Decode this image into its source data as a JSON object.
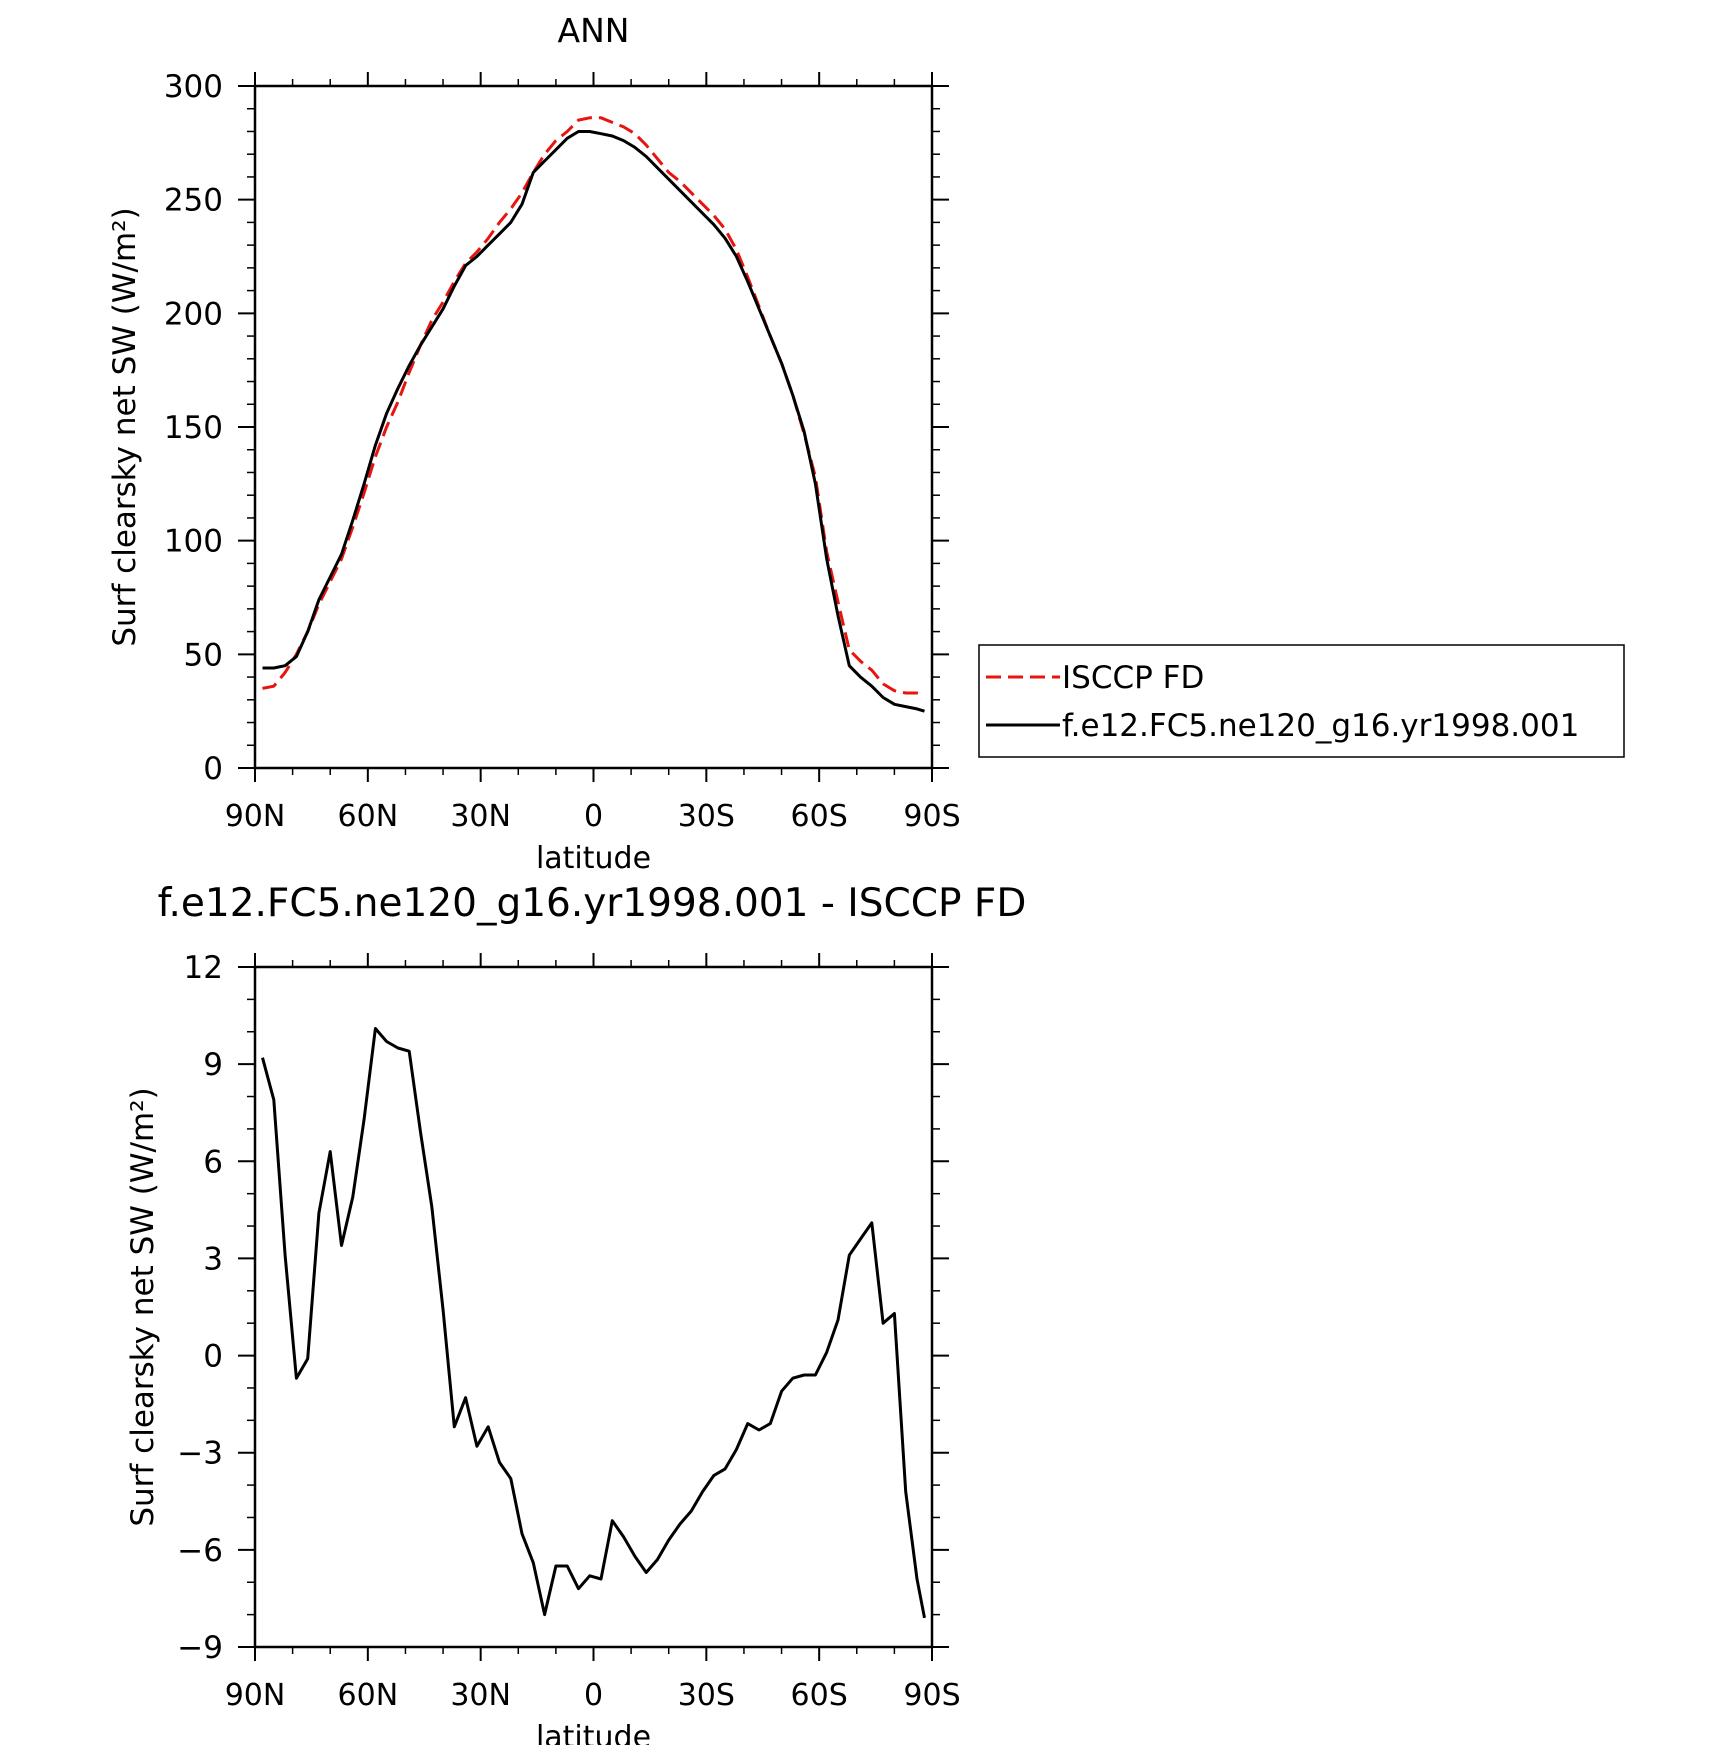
{
  "chart_data": [
    {
      "type": "line",
      "title": "ANN",
      "xlabel": "latitude",
      "ylabel": "Surf clearsky net SW (W/m²)",
      "xlim": [
        90,
        -90
      ],
      "ylim": [
        0,
        300
      ],
      "xticks": [
        {
          "value": 90,
          "label": "90N"
        },
        {
          "value": 60,
          "label": "60N"
        },
        {
          "value": 30,
          "label": "30N"
        },
        {
          "value": 0,
          "label": "0"
        },
        {
          "value": -30,
          "label": "30S"
        },
        {
          "value": -60,
          "label": "60S"
        },
        {
          "value": -90,
          "label": "90S"
        }
      ],
      "yticks": [
        {
          "value": 0,
          "label": "0"
        },
        {
          "value": 50,
          "label": "50"
        },
        {
          "value": 100,
          "label": "100"
        },
        {
          "value": 150,
          "label": "150"
        },
        {
          "value": 200,
          "label": "200"
        },
        {
          "value": 250,
          "label": "250"
        },
        {
          "value": 300,
          "label": "300"
        }
      ],
      "grid": false,
      "legend": "right",
      "series": [
        {
          "name": "ISCCP FD",
          "color": "#e8140f",
          "dash": true,
          "x": [
            88,
            85,
            82,
            79,
            76,
            73,
            70,
            67,
            64,
            61,
            58,
            55,
            52,
            49,
            46,
            43,
            40,
            37,
            34,
            31,
            28,
            25,
            22,
            19,
            16,
            13,
            10,
            7,
            4,
            1,
            -2,
            -5,
            -8,
            -11,
            -14,
            -17,
            -20,
            -23,
            -26,
            -29,
            -32,
            -35,
            -38,
            -41,
            -44,
            -47,
            -50,
            -53,
            -56,
            -59,
            -62,
            -65,
            -68,
            -71,
            -74,
            -77,
            -80,
            -83,
            -86,
            -88
          ],
          "y": [
            35,
            36,
            42,
            50,
            60,
            72,
            82,
            92,
            106,
            121,
            137,
            150,
            161,
            174,
            186,
            197,
            205,
            214,
            222,
            227,
            233,
            240,
            246,
            253,
            262,
            270,
            276,
            280,
            285,
            286,
            286,
            284,
            282,
            279,
            274,
            268,
            262,
            258,
            253,
            248,
            243,
            237,
            228,
            216,
            203,
            190,
            178,
            164,
            147,
            128,
            95,
            73,
            52,
            47,
            43,
            37,
            34,
            33,
            33,
            32
          ]
        },
        {
          "name": "f.e12.FC5.ne120_g16.yr1998.001",
          "color": "#000000",
          "dash": false,
          "x": [
            88,
            85,
            82,
            79,
            76,
            73,
            70,
            67,
            64,
            61,
            58,
            55,
            52,
            49,
            46,
            43,
            40,
            37,
            34,
            31,
            28,
            25,
            22,
            19,
            16,
            13,
            10,
            7,
            4,
            1,
            -2,
            -5,
            -8,
            -11,
            -14,
            -17,
            -20,
            -23,
            -26,
            -29,
            -32,
            -35,
            -38,
            -41,
            -44,
            -47,
            -50,
            -53,
            -56,
            -59,
            -62,
            -65,
            -68,
            -71,
            -74,
            -77,
            -80,
            -83,
            -86,
            -88
          ],
          "y": [
            44,
            44,
            45,
            49,
            60,
            74,
            84,
            94,
            109,
            125,
            142,
            156,
            167,
            177,
            186,
            194,
            202,
            212,
            221,
            225,
            230,
            235,
            240,
            248,
            262,
            267,
            272,
            277,
            280,
            280,
            279,
            278,
            276,
            273,
            269,
            264,
            259,
            254,
            249,
            244,
            239,
            233,
            225,
            214,
            202,
            190,
            178,
            164,
            148,
            125,
            92,
            67,
            45,
            40,
            36,
            31,
            28,
            27,
            26,
            25
          ]
        }
      ]
    },
    {
      "type": "line",
      "title": "f.e12.FC5.ne120_g16.yr1998.001 - ISCCP FD",
      "xlabel": "latitude",
      "ylabel": "Surf clearsky net SW (W/m²)",
      "xlim": [
        90,
        -90
      ],
      "ylim": [
        -9,
        12
      ],
      "xticks": [
        {
          "value": 90,
          "label": "90N"
        },
        {
          "value": 60,
          "label": "60N"
        },
        {
          "value": 30,
          "label": "30N"
        },
        {
          "value": 0,
          "label": "0"
        },
        {
          "value": -30,
          "label": "30S"
        },
        {
          "value": -60,
          "label": "60S"
        },
        {
          "value": -90,
          "label": "90S"
        }
      ],
      "yticks": [
        {
          "value": -9,
          "label": "−9"
        },
        {
          "value": -6,
          "label": "−6"
        },
        {
          "value": -3,
          "label": "−3"
        },
        {
          "value": 0,
          "label": "0"
        },
        {
          "value": 3,
          "label": "3"
        },
        {
          "value": 6,
          "label": "6"
        },
        {
          "value": 9,
          "label": "9"
        },
        {
          "value": 12,
          "label": "12"
        }
      ],
      "grid": false,
      "series": [
        {
          "color": "#000000",
          "dash": false,
          "x": [
            88,
            85,
            82,
            79,
            76,
            73,
            70,
            67,
            64,
            61,
            58,
            55,
            52,
            49,
            46,
            43,
            40,
            37,
            34,
            31,
            28,
            25,
            22,
            19,
            16,
            13,
            10,
            7,
            4,
            1,
            -2,
            -5,
            -8,
            -11,
            -14,
            -17,
            -20,
            -23,
            -26,
            -29,
            -32,
            -35,
            -38,
            -41,
            -44,
            -47,
            -50,
            -53,
            -56,
            -59,
            -62,
            -65,
            -68,
            -71,
            -74,
            -77,
            -80,
            -83,
            -86,
            -88
          ],
          "y": [
            9.2,
            7.9,
            3.1,
            -0.7,
            -0.1,
            4.4,
            6.3,
            3.4,
            4.9,
            7.3,
            10.1,
            9.7,
            9.5,
            9.4,
            6.9,
            4.6,
            1.4,
            -2.2,
            -1.3,
            -2.8,
            -2.2,
            -3.3,
            -3.8,
            -5.5,
            -6.4,
            -8.0,
            -6.5,
            -6.5,
            -7.2,
            -6.8,
            -6.9,
            -5.1,
            -5.6,
            -6.2,
            -6.7,
            -6.3,
            -5.7,
            -5.2,
            -4.8,
            -4.2,
            -3.7,
            -3.5,
            -2.9,
            -2.1,
            -2.3,
            -2.1,
            -1.1,
            -0.7,
            -0.6,
            -0.6,
            0.1,
            1.1,
            3.1,
            3.6,
            4.1,
            1.0,
            1.3,
            -4.2,
            -6.9,
            -8.1
          ]
        }
      ]
    }
  ]
}
